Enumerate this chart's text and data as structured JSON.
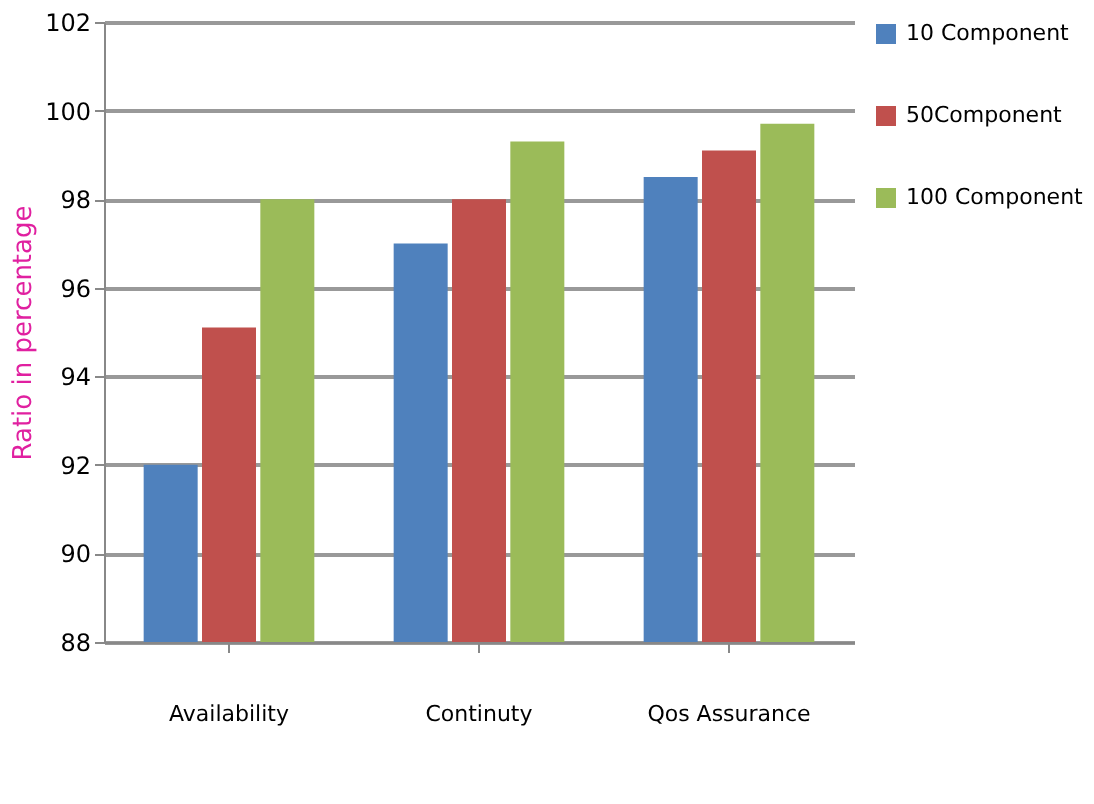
{
  "chart_data": {
    "type": "bar",
    "ylabel": "Ratio in percentage",
    "categories": [
      "Availability",
      "Continuty",
      "Qos Assurance"
    ],
    "series": [
      {
        "name": "10 Component",
        "color": "#4f81bd",
        "values": [
          92,
          97,
          98.5
        ]
      },
      {
        "name": "50Component",
        "color": "#c0504d",
        "values": [
          95.1,
          98,
          99.1
        ]
      },
      {
        "name": "100 Component",
        "color": "#9bbb59",
        "values": [
          98,
          99.3,
          99.7
        ]
      }
    ],
    "ylim": [
      88,
      102
    ],
    "yticks": [
      88,
      90,
      92,
      94,
      96,
      98,
      100,
      102
    ],
    "grid": "y",
    "legend": "right"
  }
}
